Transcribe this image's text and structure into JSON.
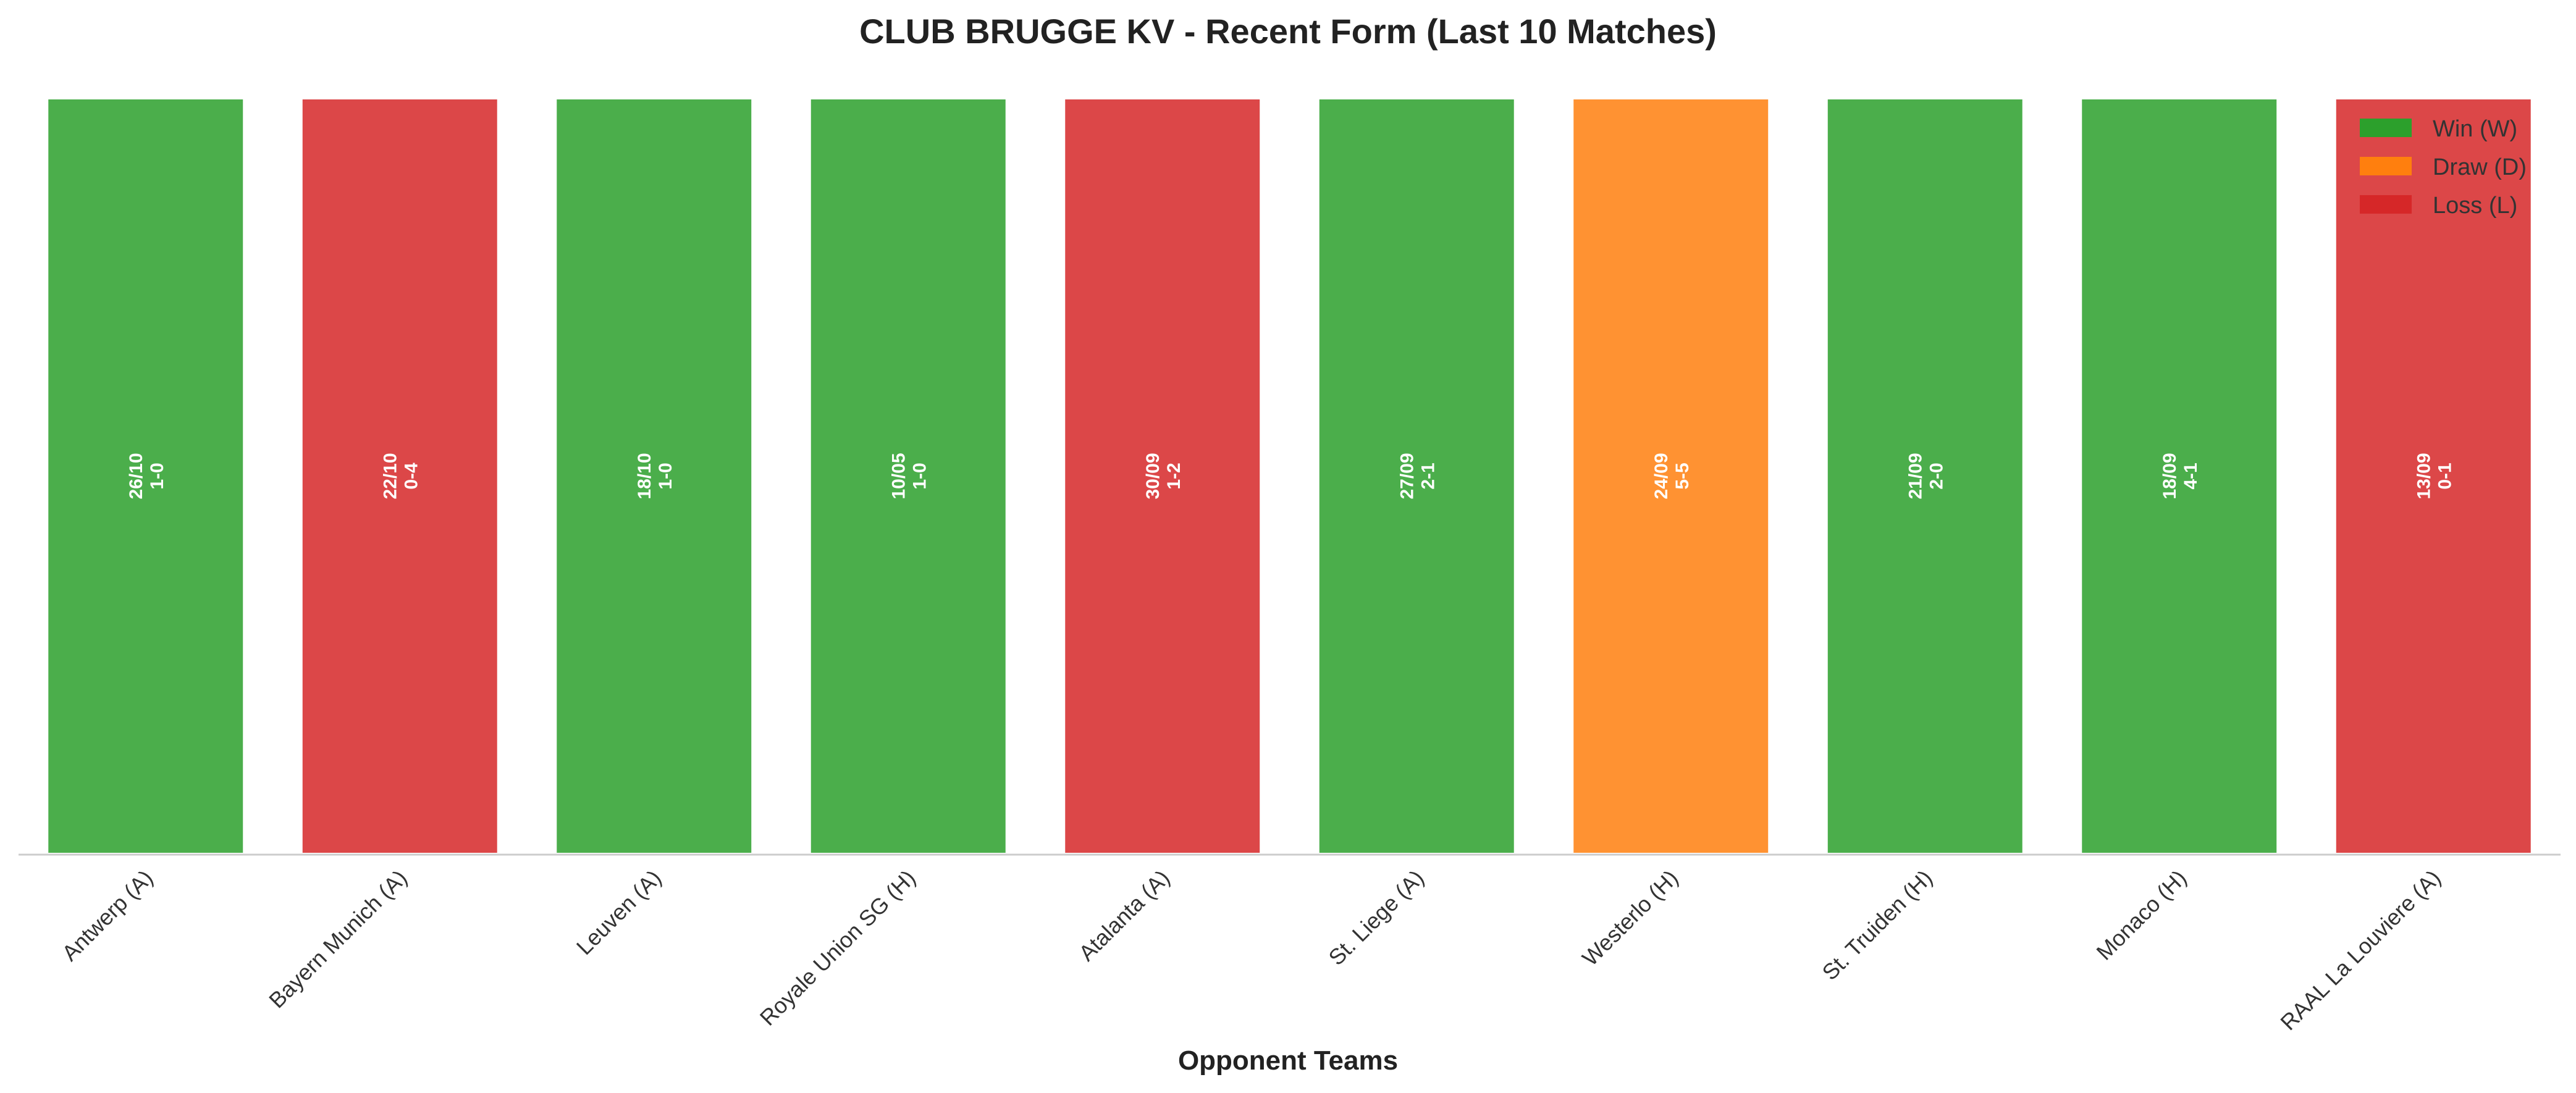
{
  "chart_data": {
    "type": "bar",
    "title": "CLUB BRUGGE KV - Recent Form (Last 10 Matches)",
    "xlabel": "Opponent Teams",
    "ylabel": "",
    "grid": false,
    "legend_position": "top-right",
    "categories": [
      "Antwerp (A)",
      "Bayern Munich (A)",
      "Leuven (A)",
      "Royale Union SG (H)",
      "Atalanta (A)",
      "St. Liege (A)",
      "Westerlo (H)",
      "St. Truiden (H)",
      "Monaco (H)",
      "RAAL La Louviere (A)"
    ],
    "values": [
      1,
      1,
      1,
      1,
      1,
      1,
      1,
      1,
      1,
      1
    ],
    "results": [
      "W",
      "L",
      "W",
      "W",
      "L",
      "W",
      "D",
      "W",
      "W",
      "L"
    ],
    "dates": [
      "26/10",
      "22/10",
      "18/10",
      "10/05",
      "30/09",
      "27/09",
      "24/09",
      "21/09",
      "18/09",
      "13/09"
    ],
    "scores": [
      "1-0",
      "0-4",
      "1-0",
      "1-0",
      "1-2",
      "2-1",
      "5-5",
      "2-0",
      "4-1",
      "0-1"
    ],
    "legend": [
      {
        "key": "W",
        "label": "Win (W)",
        "color": "#2ca02c"
      },
      {
        "key": "D",
        "label": "Draw (D)",
        "color": "#ff7f0e"
      },
      {
        "key": "L",
        "label": "Loss (L)",
        "color": "#d62728"
      }
    ]
  }
}
